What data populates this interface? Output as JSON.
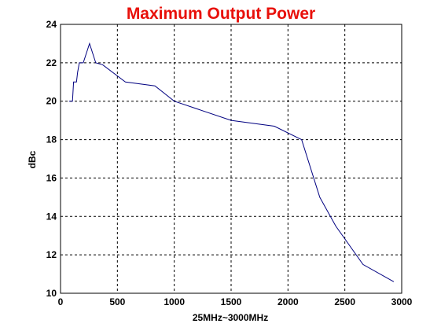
{
  "chart_data": {
    "type": "line",
    "title": "Maximum Output Power",
    "xlabel": "25MHz~3000MHz",
    "ylabel": "dBc",
    "xlim": [
      0,
      3000
    ],
    "ylim": [
      10,
      24
    ],
    "x_ticks": [
      "0",
      "500",
      "1000",
      "1500",
      "2000",
      "2500",
      "3000"
    ],
    "y_ticks": [
      "10",
      "12",
      "14",
      "16",
      "18",
      "20",
      "22",
      "24"
    ],
    "grid": true,
    "series": [
      {
        "x": [
          75,
          105,
          115,
          140,
          150,
          165,
          200,
          255,
          310,
          370,
          570,
          830,
          1000,
          1500,
          1880,
          2120,
          2280,
          2420,
          2660,
          2930
        ],
        "y": [
          20.0,
          20.0,
          21.0,
          21.0,
          21.5,
          22.0,
          22.0,
          23.0,
          22.0,
          21.9,
          21.0,
          20.8,
          20.0,
          19.0,
          18.7,
          18.0,
          15.0,
          13.5,
          11.5,
          10.6
        ]
      }
    ],
    "colors": {
      "title": "#e8100a",
      "line": "#000080",
      "grid": "#000000",
      "axis": "#000000"
    }
  }
}
